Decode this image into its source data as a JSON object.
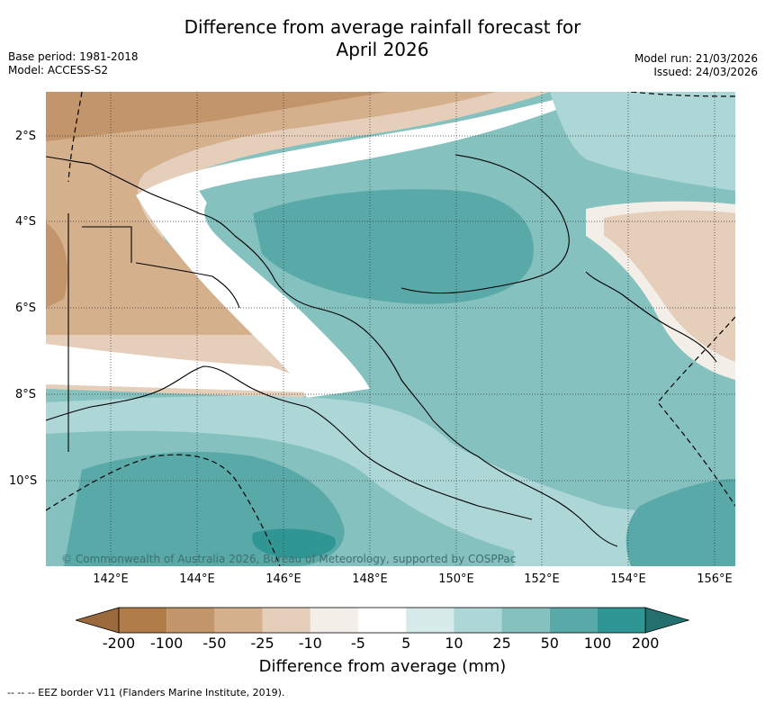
{
  "header": {
    "title_line1": "Difference from average rainfall forecast for",
    "title_line2": "April 2026",
    "base_period": "Base period: 1981-2018",
    "model": "Model: ACCESS-S2",
    "model_run": "Model run: 21/03/2026",
    "issued": "Issued: 24/03/2026"
  },
  "map": {
    "lat_labels": [
      "2°S",
      "4°S",
      "6°S",
      "8°S",
      "10°S"
    ],
    "lon_labels": [
      "142°E",
      "144°E",
      "146°E",
      "148°E",
      "150°E",
      "152°E",
      "154°E",
      "156°E"
    ],
    "copyright": "© Commonwealth of Australia 2026, Bureau of Meteorology, supported by COSPPac"
  },
  "legend": {
    "ticks": [
      "-200",
      "-100",
      "-50",
      "-25",
      "-10",
      "-5",
      "5",
      "10",
      "25",
      "50",
      "100",
      "200"
    ],
    "colors": [
      "#9b6a3c",
      "#b07c47",
      "#c3956a",
      "#d4b08d",
      "#e5cfba",
      "#f3eee7",
      "#ffffff",
      "#d6eaea",
      "#add7d6",
      "#84c1bf",
      "#58a9a7",
      "#2f9693",
      "#23706e"
    ],
    "title": "Difference from average (mm)"
  },
  "footer": {
    "eez_note": "--  --  -- EEZ border V11 (Flanders Marine Institute, 2019)."
  }
}
